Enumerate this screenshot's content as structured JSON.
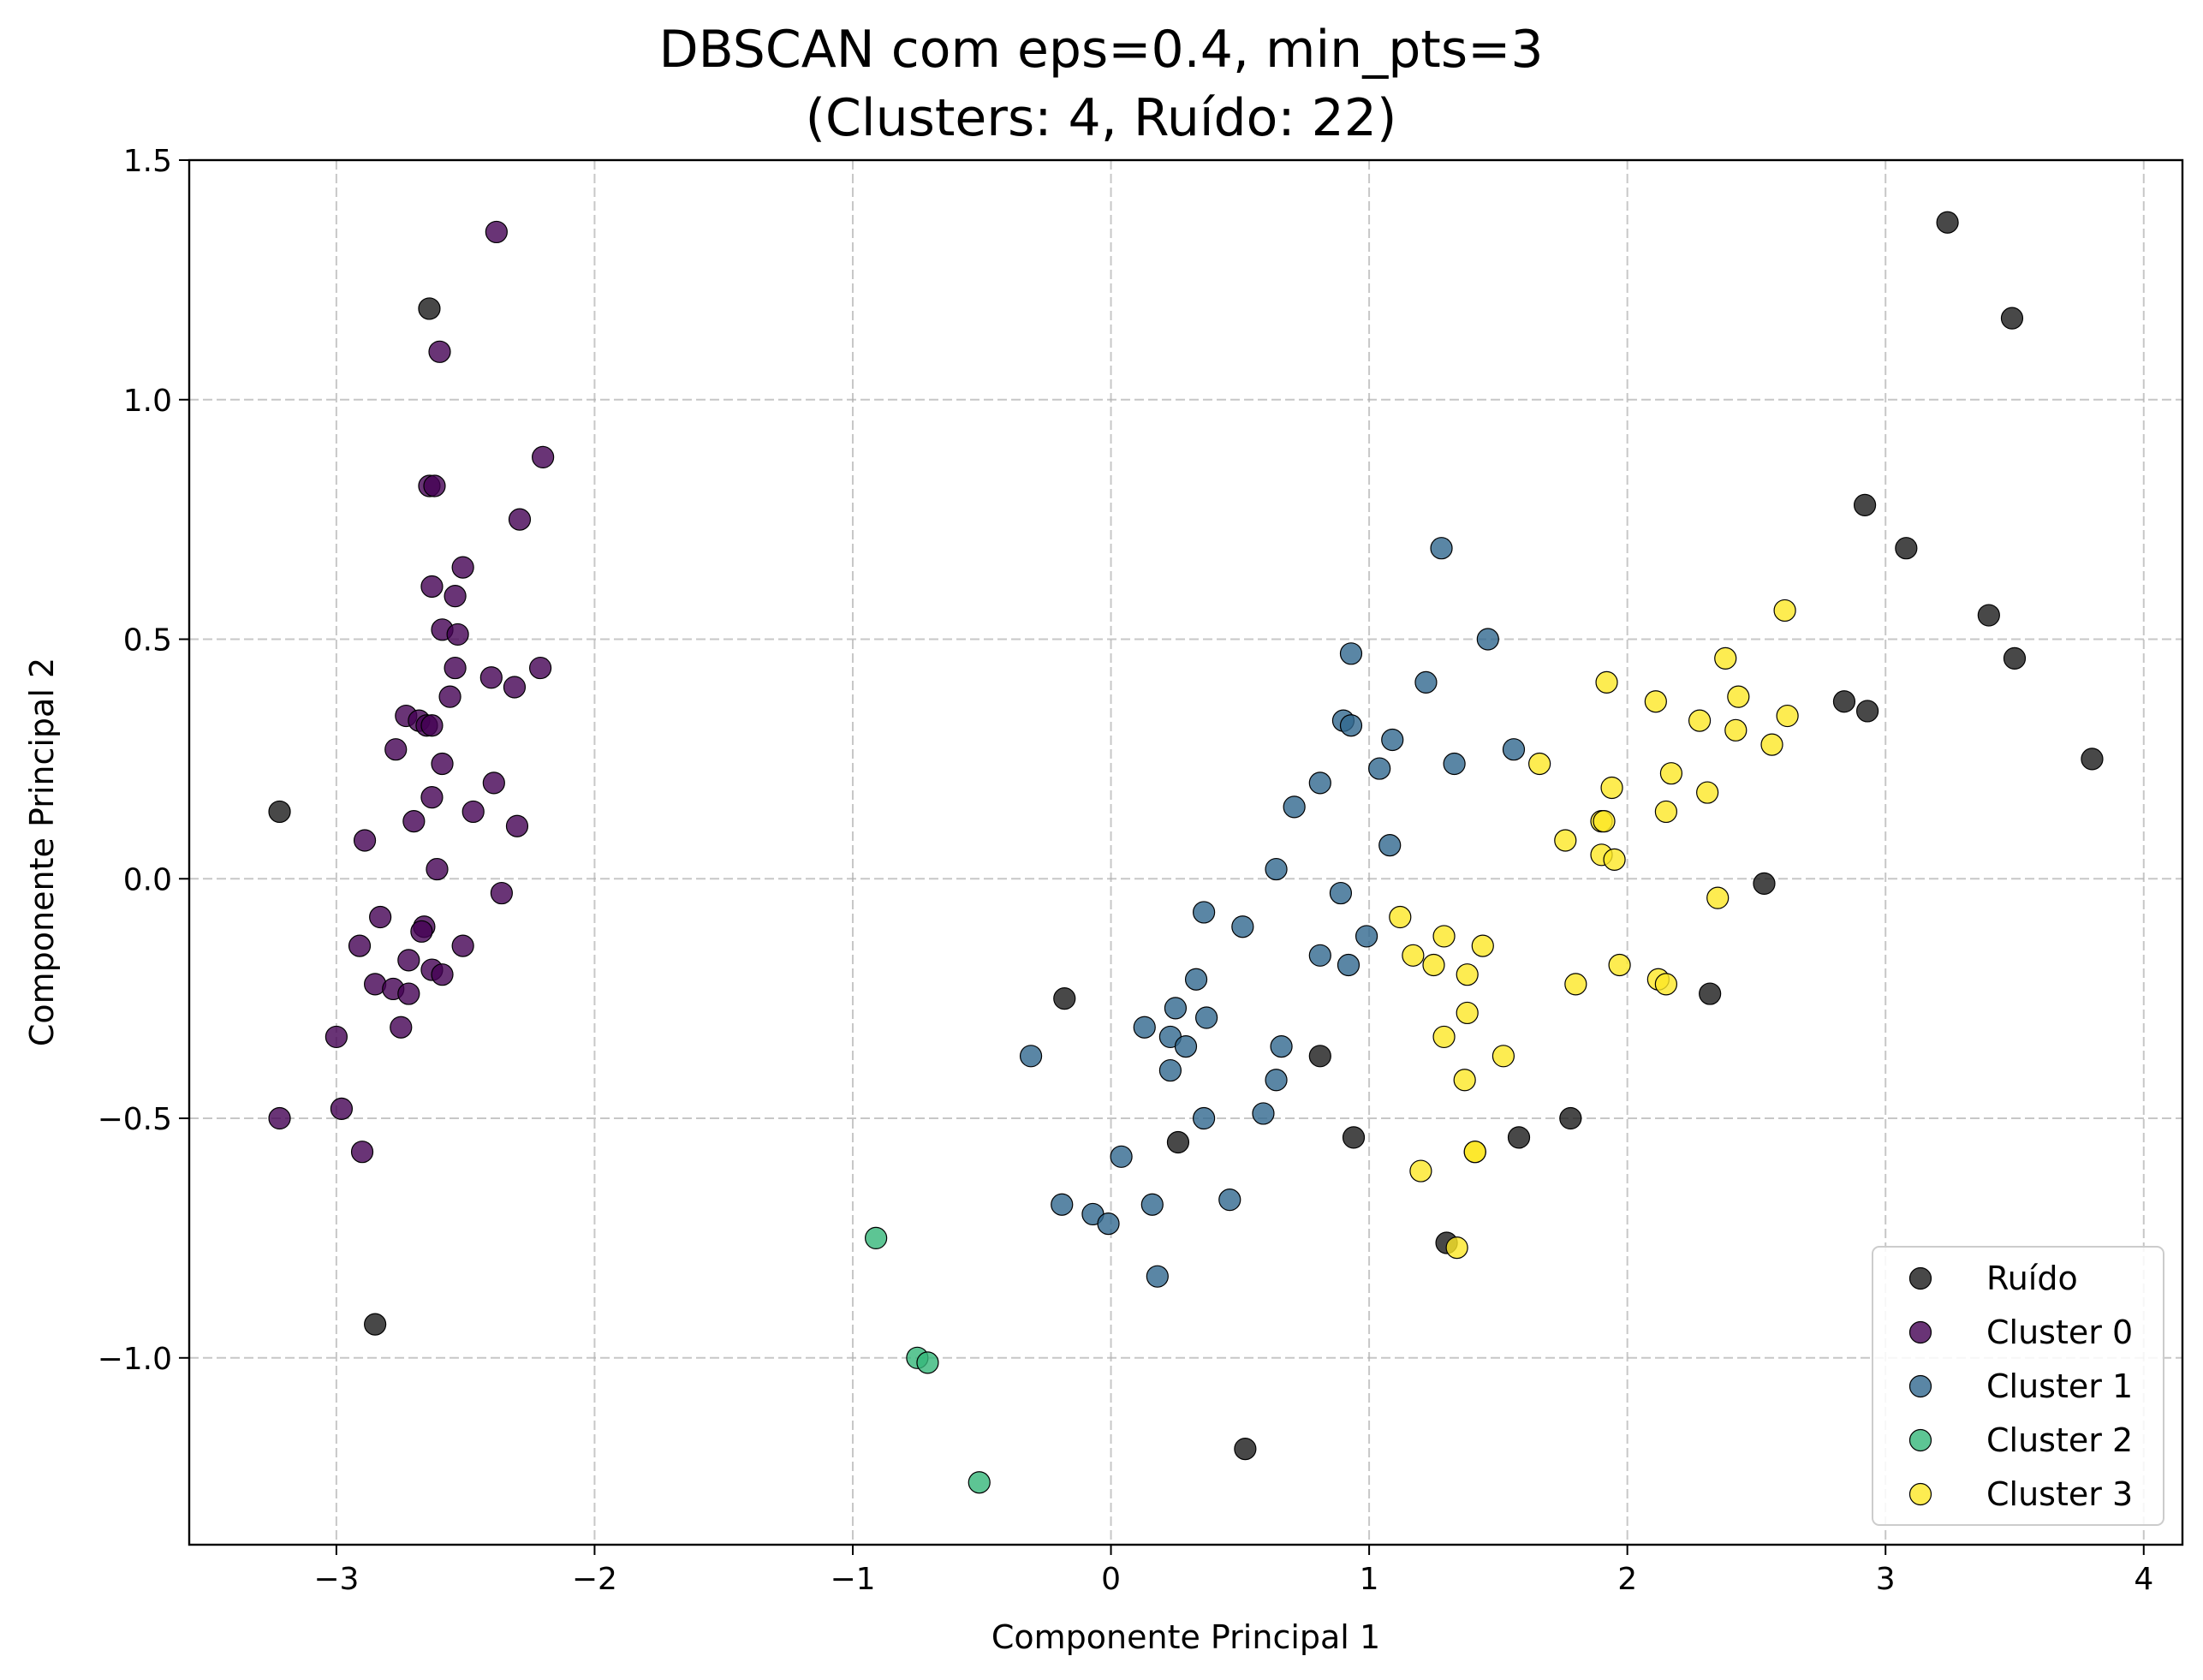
{
  "chart_data": {
    "type": "scatter",
    "title": "DBSCAN com eps=0.4, min_pts=3",
    "subtitle": "(Clusters: 4, Ruído: 22)",
    "xlabel": "Componente Principal 1",
    "ylabel": "Componente Principal 2",
    "xlim": [
      -3.57,
      4.15
    ],
    "ylim": [
      -1.39,
      1.5
    ],
    "xticks": [
      -3,
      -2,
      -1,
      0,
      1,
      2,
      3,
      4
    ],
    "yticks": [
      -1.0,
      -0.5,
      0.0,
      0.5,
      1.0,
      1.5
    ],
    "xtick_labels": [
      "−3",
      "−2",
      "−1",
      "0",
      "1",
      "2",
      "3",
      "4"
    ],
    "ytick_labels": [
      "−1.0",
      "−0.5",
      "0.0",
      "0.5",
      "1.0",
      "1.5"
    ],
    "grid": true,
    "legend_position": "bottom-right",
    "series": [
      {
        "name": "Ruído",
        "color": "#1a1a1a",
        "points": [
          [
            -2.64,
            1.19
          ],
          [
            -3.22,
            0.14
          ],
          [
            -2.85,
            -0.93
          ],
          [
            -0.18,
            -0.25
          ],
          [
            0.26,
            -0.55
          ],
          [
            0.52,
            -1.19
          ],
          [
            0.81,
            -0.37
          ],
          [
            0.94,
            -0.54
          ],
          [
            1.3,
            -0.76
          ],
          [
            1.58,
            -0.54
          ],
          [
            1.78,
            -0.5
          ],
          [
            2.32,
            -0.24
          ],
          [
            2.53,
            -0.01
          ],
          [
            2.84,
            0.37
          ],
          [
            2.93,
            0.35
          ],
          [
            2.92,
            0.78
          ],
          [
            3.08,
            0.69
          ],
          [
            3.24,
            1.37
          ],
          [
            3.4,
            0.55
          ],
          [
            3.49,
            1.17
          ],
          [
            3.5,
            0.46
          ],
          [
            3.8,
            0.25
          ]
        ]
      },
      {
        "name": "Cluster 0",
        "color": "#440154",
        "points": [
          [
            -2.38,
            1.35
          ],
          [
            -2.6,
            1.1
          ],
          [
            -2.2,
            0.88
          ],
          [
            -2.64,
            0.82
          ],
          [
            -2.62,
            0.82
          ],
          [
            -2.29,
            0.75
          ],
          [
            -2.51,
            0.65
          ],
          [
            -2.63,
            0.61
          ],
          [
            -2.54,
            0.59
          ],
          [
            -2.59,
            0.52
          ],
          [
            -2.53,
            0.51
          ],
          [
            -2.54,
            0.44
          ],
          [
            -2.21,
            0.44
          ],
          [
            -2.4,
            0.42
          ],
          [
            -2.31,
            0.4
          ],
          [
            -2.56,
            0.38
          ],
          [
            -2.73,
            0.34
          ],
          [
            -2.68,
            0.33
          ],
          [
            -2.65,
            0.32
          ],
          [
            -2.63,
            0.32
          ],
          [
            -2.77,
            0.27
          ],
          [
            -2.59,
            0.24
          ],
          [
            -2.39,
            0.2
          ],
          [
            -2.63,
            0.17
          ],
          [
            -2.47,
            0.14
          ],
          [
            -2.7,
            0.12
          ],
          [
            -2.3,
            0.11
          ],
          [
            -2.89,
            0.08
          ],
          [
            -2.61,
            0.02
          ],
          [
            -2.36,
            -0.03
          ],
          [
            -2.83,
            -0.08
          ],
          [
            -2.66,
            -0.1
          ],
          [
            -2.67,
            -0.11
          ],
          [
            -2.51,
            -0.14
          ],
          [
            -2.91,
            -0.14
          ],
          [
            -2.72,
            -0.17
          ],
          [
            -2.63,
            -0.19
          ],
          [
            -2.59,
            -0.2
          ],
          [
            -2.85,
            -0.22
          ],
          [
            -2.78,
            -0.23
          ],
          [
            -2.72,
            -0.24
          ],
          [
            -2.75,
            -0.31
          ],
          [
            -3.0,
            -0.33
          ],
          [
            -2.98,
            -0.48
          ],
          [
            -3.22,
            -0.5
          ],
          [
            -2.9,
            -0.57
          ]
        ]
      },
      {
        "name": "Cluster 1",
        "color": "#31688e",
        "points": [
          [
            1.28,
            0.69
          ],
          [
            1.46,
            0.5
          ],
          [
            0.93,
            0.47
          ],
          [
            1.22,
            0.41
          ],
          [
            0.9,
            0.33
          ],
          [
            0.93,
            0.32
          ],
          [
            1.09,
            0.29
          ],
          [
            1.56,
            0.27
          ],
          [
            1.33,
            0.24
          ],
          [
            1.04,
            0.23
          ],
          [
            0.81,
            0.2
          ],
          [
            0.71,
            0.15
          ],
          [
            1.08,
            0.07
          ],
          [
            0.64,
            0.02
          ],
          [
            0.89,
            -0.03
          ],
          [
            0.36,
            -0.07
          ],
          [
            0.51,
            -0.1
          ],
          [
            0.99,
            -0.12
          ],
          [
            0.81,
            -0.16
          ],
          [
            0.92,
            -0.18
          ],
          [
            0.33,
            -0.21
          ],
          [
            0.25,
            -0.27
          ],
          [
            0.37,
            -0.29
          ],
          [
            0.13,
            -0.31
          ],
          [
            0.23,
            -0.33
          ],
          [
            0.29,
            -0.35
          ],
          [
            0.66,
            -0.35
          ],
          [
            -0.31,
            -0.37
          ],
          [
            0.23,
            -0.4
          ],
          [
            0.64,
            -0.42
          ],
          [
            0.59,
            -0.49
          ],
          [
            0.36,
            -0.5
          ],
          [
            0.04,
            -0.58
          ],
          [
            0.46,
            -0.67
          ],
          [
            -0.19,
            -0.68
          ],
          [
            0.16,
            -0.68
          ],
          [
            -0.07,
            -0.7
          ],
          [
            -0.01,
            -0.72
          ],
          [
            0.18,
            -0.83
          ]
        ]
      },
      {
        "name": "Cluster 2",
        "color": "#35b779",
        "points": [
          [
            -0.91,
            -0.75
          ],
          [
            -0.75,
            -1.0
          ],
          [
            -0.71,
            -1.01
          ],
          [
            -0.51,
            -1.26
          ]
        ]
      },
      {
        "name": "Cluster 3",
        "color": "#fde725",
        "points": [
          [
            2.61,
            0.56
          ],
          [
            2.38,
            0.46
          ],
          [
            1.92,
            0.41
          ],
          [
            2.43,
            0.38
          ],
          [
            2.11,
            0.37
          ],
          [
            2.62,
            0.34
          ],
          [
            2.28,
            0.33
          ],
          [
            2.42,
            0.31
          ],
          [
            2.56,
            0.28
          ],
          [
            1.66,
            0.24
          ],
          [
            2.17,
            0.22
          ],
          [
            1.94,
            0.19
          ],
          [
            2.31,
            0.18
          ],
          [
            2.15,
            0.14
          ],
          [
            1.9,
            0.12
          ],
          [
            1.91,
            0.12
          ],
          [
            1.76,
            0.08
          ],
          [
            1.9,
            0.05
          ],
          [
            1.95,
            0.04
          ],
          [
            2.35,
            -0.04
          ],
          [
            1.12,
            -0.08
          ],
          [
            1.29,
            -0.12
          ],
          [
            1.44,
            -0.14
          ],
          [
            1.17,
            -0.16
          ],
          [
            1.25,
            -0.18
          ],
          [
            1.97,
            -0.18
          ],
          [
            1.38,
            -0.2
          ],
          [
            2.12,
            -0.21
          ],
          [
            2.15,
            -0.22
          ],
          [
            1.8,
            -0.22
          ],
          [
            1.38,
            -0.28
          ],
          [
            1.29,
            -0.33
          ],
          [
            1.52,
            -0.37
          ],
          [
            1.37,
            -0.42
          ],
          [
            1.41,
            -0.57
          ],
          [
            1.41,
            -0.57
          ],
          [
            1.2,
            -0.61
          ],
          [
            1.34,
            -0.77
          ]
        ]
      }
    ]
  }
}
